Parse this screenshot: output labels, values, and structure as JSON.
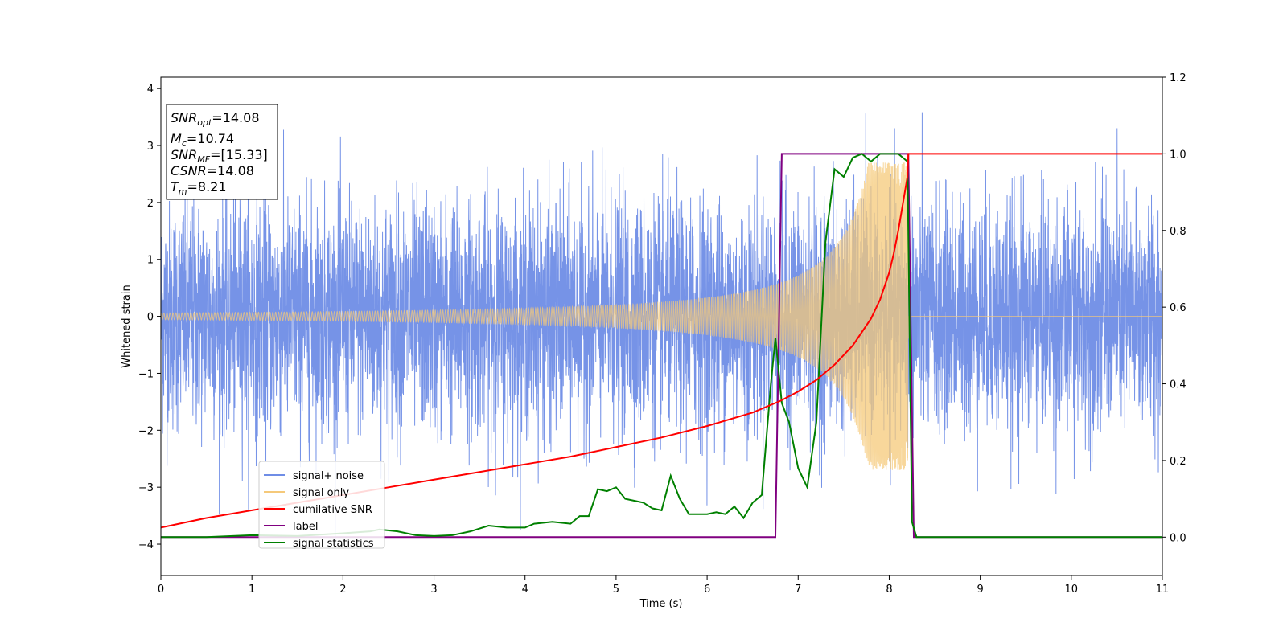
{
  "chart_data": {
    "type": "line",
    "xlabel": "Time (s)",
    "ylabel": "Whitened strain",
    "xlim": [
      0,
      11
    ],
    "ylim_left": [
      -4.55,
      4.2
    ],
    "ylim_right": [
      -0.1,
      1.2
    ],
    "x_ticks": [
      0,
      1,
      2,
      3,
      4,
      5,
      6,
      7,
      8,
      9,
      10,
      11
    ],
    "y_ticks_left": [
      -4,
      -3,
      -2,
      -1,
      0,
      1,
      2,
      3,
      4
    ],
    "y_tick_labels_left": [
      "−4",
      "−3",
      "−2",
      "−1",
      "0",
      "1",
      "2",
      "3",
      "4"
    ],
    "y_ticks_right": [
      0.0,
      0.2,
      0.4,
      0.6,
      0.8,
      1.0,
      1.2
    ],
    "y_tick_labels_right": [
      "0.0",
      "0.2",
      "0.4",
      "0.6",
      "0.8",
      "1.0",
      "1.2"
    ],
    "legend_placement": "lower-left",
    "grid": false,
    "info_box": {
      "snr_opt": {
        "var": "SNR",
        "sub": "opt",
        "value": "=14.08"
      },
      "mc": {
        "var": "M",
        "sub": "c",
        "value": "=10.74"
      },
      "snr_mf": {
        "var": "SNR",
        "sub": "MF",
        "value": "=[15.33]"
      },
      "csnr": {
        "var": "CSNR",
        "sub": "",
        "value": "=14.08"
      },
      "tm": {
        "var": "T",
        "sub": "m",
        "value": "=8.21"
      }
    },
    "series": [
      {
        "name": "signal+ noise",
        "axis": "left",
        "color": "#6f8de6",
        "description": "whitened noise, std ~1, range approx -4.2 to 3.8",
        "amplitude_std": 1.0
      },
      {
        "name": "signal only",
        "axis": "left",
        "color": "#f5c97a",
        "description": "chirp from 0 to 8.21 s, amplitude rising to ~2.7 at merger",
        "t_merger": 8.21,
        "start_amplitude": 0.06,
        "peak_amplitude": 2.7
      },
      {
        "name": "cumilative SNR",
        "axis": "right",
        "color": "#ff0000",
        "x": [
          0,
          0.5,
          1,
          1.5,
          2,
          2.5,
          3,
          3.5,
          4,
          4.5,
          5,
          5.5,
          6,
          6.5,
          6.8,
          7,
          7.2,
          7.4,
          7.6,
          7.8,
          7.9,
          8.0,
          8.05,
          8.1,
          8.15,
          8.2,
          8.21,
          11
        ],
        "y": [
          0.025,
          0.05,
          0.07,
          0.09,
          0.11,
          0.13,
          0.15,
          0.17,
          0.19,
          0.21,
          0.235,
          0.26,
          0.29,
          0.325,
          0.355,
          0.38,
          0.41,
          0.45,
          0.5,
          0.57,
          0.62,
          0.69,
          0.74,
          0.8,
          0.87,
          0.94,
          1.0,
          1.0
        ]
      },
      {
        "name": "label",
        "axis": "right",
        "color": "#800080",
        "x": [
          0,
          6.75,
          6.82,
          8.21,
          8.27,
          11
        ],
        "y": [
          0,
          0,
          1,
          1,
          0,
          0
        ]
      },
      {
        "name": "signal statistics",
        "axis": "right",
        "color": "#008000",
        "x": [
          0,
          0.5,
          1.0,
          1.5,
          2.0,
          2.3,
          2.4,
          2.6,
          2.8,
          3.0,
          3.2,
          3.4,
          3.6,
          3.8,
          4.0,
          4.1,
          4.3,
          4.5,
          4.6,
          4.7,
          4.8,
          4.9,
          5.0,
          5.1,
          5.2,
          5.3,
          5.4,
          5.5,
          5.6,
          5.7,
          5.8,
          6.0,
          6.1,
          6.2,
          6.3,
          6.4,
          6.5,
          6.6,
          6.7,
          6.75,
          6.82,
          6.9,
          7.0,
          7.1,
          7.2,
          7.3,
          7.4,
          7.5,
          7.6,
          7.7,
          7.8,
          7.9,
          8.0,
          8.1,
          8.2,
          8.25,
          8.3,
          11
        ],
        "y": [
          0.0,
          0.0,
          0.005,
          0.003,
          0.01,
          0.015,
          0.02,
          0.015,
          0.005,
          0.003,
          0.005,
          0.015,
          0.03,
          0.025,
          0.025,
          0.035,
          0.04,
          0.035,
          0.055,
          0.055,
          0.125,
          0.12,
          0.13,
          0.1,
          0.095,
          0.09,
          0.075,
          0.07,
          0.16,
          0.1,
          0.06,
          0.06,
          0.065,
          0.06,
          0.08,
          0.05,
          0.09,
          0.11,
          0.4,
          0.52,
          0.35,
          0.3,
          0.18,
          0.13,
          0.3,
          0.77,
          0.96,
          0.94,
          0.99,
          1.0,
          0.98,
          1.0,
          1.0,
          1.0,
          0.98,
          0.04,
          0.0,
          0.0
        ]
      }
    ]
  }
}
